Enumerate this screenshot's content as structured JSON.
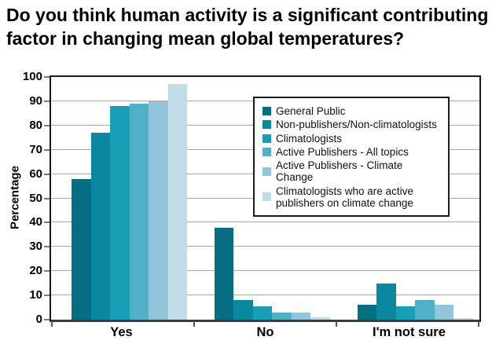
{
  "header": {
    "line1": "Do you think human activity is a significant contributing",
    "line2": "factor in changing mean global temperatures?"
  },
  "chart_data": {
    "type": "bar",
    "title": "Do you think human activity is a significant contributing factor in changing mean global temperatures?",
    "xlabel": "",
    "ylabel": "Percentage",
    "ylim": [
      0,
      100
    ],
    "yticks": [
      0,
      10,
      20,
      30,
      40,
      50,
      60,
      70,
      80,
      90,
      100
    ],
    "grid": "horizontal",
    "gridline_color": "#a8a8a8",
    "legend_position": "inside-top-right",
    "categories": [
      "Yes",
      "No",
      "I'm not sure"
    ],
    "series": [
      {
        "name": "General Public",
        "color": "#066e83",
        "values": [
          58,
          38,
          6
        ]
      },
      {
        "name": "Non-publishers/Non-climatologists",
        "color": "#0b87a0",
        "values": [
          77,
          8,
          15
        ]
      },
      {
        "name": "Climatologists",
        "color": "#189fb7",
        "values": [
          88,
          5.5,
          5.5
        ]
      },
      {
        "name": "Active Publishers - All topics",
        "color": "#4fb0c8",
        "values": [
          89,
          3,
          8
        ]
      },
      {
        "name": "Active Publishers - Climate Change",
        "color": "#92c5d9",
        "values": [
          90,
          3,
          6
        ]
      },
      {
        "name": "Climatologists who are active publishers on climate change",
        "color": "#c1dde9",
        "values": [
          97,
          1,
          0.5
        ]
      }
    ],
    "legend_labels": [
      "General Public",
      "Non-publishers/Non-climatologists",
      "Climatologists",
      "Active Publishers - All topics",
      "Active Publishers - Climate Change",
      "Climatologists who are active publishers on climate change"
    ]
  }
}
